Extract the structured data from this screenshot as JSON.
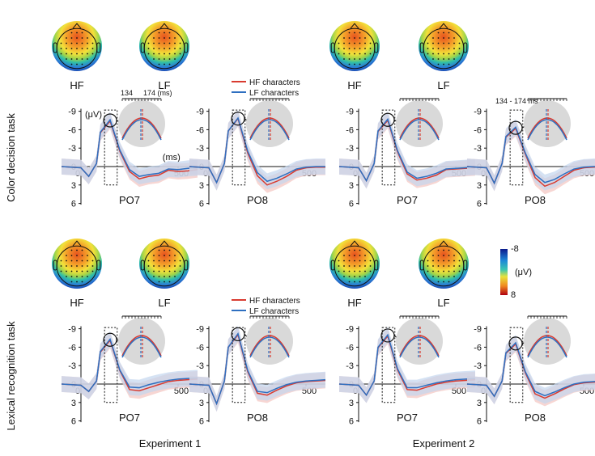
{
  "figure": {
    "row_labels": [
      "Color decision task",
      "Lexical recognition task"
    ],
    "column_labels": [
      "Experiment 1",
      "Experiment 2"
    ],
    "topo_labels": [
      "HF",
      "LF"
    ],
    "unit_label": "(μV)",
    "ms_label": "(ms)",
    "window_label_e1": [
      "134",
      "174 (ms)"
    ],
    "window_label_e2": "134 - 174 ms",
    "colorbar": {
      "top": "-8",
      "bottom": "8",
      "unit": "(μV)"
    },
    "colors": {
      "hf": "#d93b30",
      "lf": "#2e6fc0",
      "hf_band": "#f4c4c0",
      "lf_band": "#c3d6ee",
      "grey": "#d9d9d9"
    }
  },
  "legend": {
    "hf": "HF characters",
    "lf": "LF characters"
  },
  "chart_data": [
    {
      "type": "line",
      "experiment": "Experiment 1",
      "task": "Color decision task",
      "channel": "PO7",
      "ylim": [
        -9,
        6
      ],
      "yticks": [
        "-9",
        "-6",
        "-3",
        "0",
        "3",
        "6"
      ],
      "xticks": [
        "0",
        "500"
      ],
      "peak_uV": -7.5,
      "series": [
        {
          "name": "HF characters",
          "x": [
            -100,
            0,
            40,
            80,
            100,
            150,
            200,
            250,
            300,
            350,
            400,
            450,
            500,
            550,
            600
          ],
          "y": [
            0,
            0.2,
            1.6,
            -0.5,
            -5.5,
            -7.4,
            -2.5,
            0.8,
            2.0,
            1.6,
            1.4,
            0.6,
            0.8,
            0.7,
            0.5
          ]
        },
        {
          "name": "LF characters",
          "x": [
            -100,
            0,
            40,
            80,
            100,
            150,
            200,
            250,
            300,
            350,
            400,
            450,
            500,
            550,
            600
          ],
          "y": [
            0,
            0.2,
            1.6,
            -0.5,
            -5.6,
            -7.6,
            -2.7,
            0.5,
            1.6,
            1.3,
            1.1,
            0.4,
            0.5,
            0.3,
            0.2
          ]
        }
      ]
    },
    {
      "type": "line",
      "experiment": "Experiment 1",
      "task": "Color decision task",
      "channel": "PO8",
      "ylim": [
        -9,
        6
      ],
      "yticks": [
        "-9",
        "-6",
        "-3",
        "0",
        "3",
        "6"
      ],
      "xticks": [
        "0",
        "500"
      ],
      "peak_uV": -7.8,
      "series": [
        {
          "name": "HF characters",
          "x": [
            -100,
            0,
            40,
            80,
            100,
            150,
            200,
            250,
            300,
            350,
            400,
            450,
            500,
            550,
            600
          ],
          "y": [
            0,
            0.2,
            2.6,
            -0.5,
            -5.8,
            -7.8,
            -2.2,
            1.5,
            3.0,
            2.4,
            1.6,
            0.6,
            0.2,
            0.1,
            0.1
          ]
        },
        {
          "name": "LF characters",
          "x": [
            -100,
            0,
            40,
            80,
            100,
            150,
            200,
            250,
            300,
            350,
            400,
            450,
            500,
            550,
            600
          ],
          "y": [
            0,
            0.2,
            2.6,
            -0.5,
            -5.8,
            -7.9,
            -2.5,
            1.0,
            2.4,
            1.9,
            1.2,
            0.4,
            0.1,
            0.0,
            0.0
          ]
        }
      ]
    },
    {
      "type": "line",
      "experiment": "Experiment 2",
      "task": "Color decision task",
      "channel": "PO7",
      "ylim": [
        -9,
        6
      ],
      "yticks": [
        "-9",
        "-6",
        "-3",
        "0",
        "3",
        "6"
      ],
      "xticks": [
        "0",
        "500"
      ],
      "peak_uV": -7.6,
      "series": [
        {
          "name": "HF characters",
          "x": [
            -100,
            0,
            40,
            80,
            100,
            150,
            200,
            250,
            300,
            350,
            400,
            450,
            500,
            550,
            600
          ],
          "y": [
            0,
            0.2,
            2.3,
            -0.5,
            -5.7,
            -7.5,
            -2.4,
            1.2,
            2.2,
            1.9,
            1.4,
            0.5,
            0.4,
            0.3,
            0.2
          ]
        },
        {
          "name": "LF characters",
          "x": [
            -100,
            0,
            40,
            80,
            100,
            150,
            200,
            250,
            300,
            350,
            400,
            450,
            500,
            550,
            600
          ],
          "y": [
            0,
            0.2,
            2.3,
            -0.5,
            -5.8,
            -7.7,
            -2.6,
            0.9,
            1.9,
            1.6,
            1.1,
            0.4,
            0.3,
            0.2,
            0.1
          ]
        }
      ]
    },
    {
      "type": "line",
      "experiment": "Experiment 2",
      "task": "Color decision task",
      "channel": "PO8",
      "ylim": [
        -9,
        6
      ],
      "yticks": [
        "-9",
        "-6",
        "-3",
        "0",
        "3",
        "6"
      ],
      "xticks": [
        "0",
        "500"
      ],
      "peak_uV": -6.3,
      "series": [
        {
          "name": "HF characters",
          "x": [
            -100,
            0,
            40,
            80,
            100,
            150,
            200,
            250,
            300,
            350,
            400,
            450,
            500,
            550,
            600
          ],
          "y": [
            0,
            0.2,
            2.7,
            -0.5,
            -4.8,
            -6.2,
            -2.0,
            1.8,
            3.2,
            2.6,
            1.6,
            0.6,
            0.2,
            0.1,
            0.0
          ]
        },
        {
          "name": "LF characters",
          "x": [
            -100,
            0,
            40,
            80,
            100,
            150,
            200,
            250,
            300,
            350,
            400,
            450,
            500,
            550,
            600
          ],
          "y": [
            0,
            0.2,
            2.7,
            -0.5,
            -4.9,
            -6.4,
            -2.2,
            1.3,
            2.6,
            2.1,
            1.2,
            0.4,
            0.1,
            0.0,
            0.0
          ]
        }
      ]
    },
    {
      "type": "line",
      "experiment": "Experiment 1",
      "task": "Lexical recognition task",
      "channel": "PO7",
      "ylim": [
        -9,
        6
      ],
      "yticks": [
        "-9",
        "-6",
        "-3",
        "0",
        "3",
        "6"
      ],
      "xticks": [
        "0",
        "500"
      ],
      "peak_uV": -7.2,
      "series": [
        {
          "name": "HF characters",
          "x": [
            -100,
            0,
            40,
            80,
            100,
            150,
            200,
            250,
            300,
            350,
            400,
            450,
            500,
            550,
            600
          ],
          "y": [
            0,
            0.2,
            1.2,
            -0.5,
            -5.2,
            -7.1,
            -2.2,
            0.9,
            1.1,
            0.6,
            0.1,
            -0.4,
            -0.6,
            -0.7,
            -0.8
          ]
        },
        {
          "name": "LF characters",
          "x": [
            -100,
            0,
            40,
            80,
            100,
            150,
            200,
            250,
            300,
            350,
            400,
            450,
            500,
            550,
            600
          ],
          "y": [
            0,
            0.2,
            1.2,
            -0.5,
            -5.3,
            -7.3,
            -2.3,
            0.5,
            0.6,
            0.1,
            -0.3,
            -0.6,
            -0.8,
            -0.9,
            -1.0
          ]
        }
      ]
    },
    {
      "type": "line",
      "experiment": "Experiment 1",
      "task": "Lexical recognition task",
      "channel": "PO8",
      "ylim": [
        -9,
        6
      ],
      "yticks": [
        "-9",
        "-6",
        "-3",
        "0",
        "3",
        "6"
      ],
      "xticks": [
        "0",
        "500"
      ],
      "peak_uV": -8.1,
      "series": [
        {
          "name": "HF characters",
          "x": [
            -100,
            0,
            40,
            80,
            100,
            150,
            200,
            250,
            300,
            350,
            400,
            450,
            500,
            550,
            600
          ],
          "y": [
            0,
            0.2,
            3.2,
            -0.5,
            -6.0,
            -8.0,
            -2.0,
            1.5,
            1.8,
            1.0,
            0.3,
            -0.2,
            -0.4,
            -0.5,
            -0.6
          ]
        },
        {
          "name": "LF characters",
          "x": [
            -100,
            0,
            40,
            80,
            100,
            150,
            200,
            250,
            300,
            350,
            400,
            450,
            500,
            550,
            600
          ],
          "y": [
            0,
            0.2,
            3.2,
            -0.5,
            -6.0,
            -8.2,
            -2.2,
            1.2,
            1.4,
            0.7,
            0.1,
            -0.3,
            -0.5,
            -0.6,
            -0.7
          ]
        }
      ]
    },
    {
      "type": "line",
      "experiment": "Experiment 2",
      "task": "Lexical recognition task",
      "channel": "PO7",
      "ylim": [
        -9,
        6
      ],
      "yticks": [
        "-9",
        "-6",
        "-3",
        "0",
        "3",
        "6"
      ],
      "xticks": [
        "0",
        "500"
      ],
      "peak_uV": -7.9,
      "series": [
        {
          "name": "HF characters",
          "x": [
            -100,
            0,
            40,
            80,
            100,
            150,
            200,
            250,
            300,
            350,
            400,
            450,
            500,
            550,
            600
          ],
          "y": [
            0,
            0.2,
            1.8,
            -0.5,
            -5.9,
            -7.8,
            -2.3,
            0.9,
            1.0,
            0.5,
            0.0,
            -0.3,
            -0.5,
            -0.6,
            -0.7
          ]
        },
        {
          "name": "LF characters",
          "x": [
            -100,
            0,
            40,
            80,
            100,
            150,
            200,
            250,
            300,
            350,
            400,
            450,
            500,
            550,
            600
          ],
          "y": [
            0,
            0.2,
            1.8,
            -0.5,
            -6.0,
            -8.0,
            -2.5,
            0.6,
            0.6,
            0.2,
            -0.2,
            -0.5,
            -0.7,
            -0.8,
            -0.9
          ]
        }
      ]
    },
    {
      "type": "line",
      "experiment": "Experiment 2",
      "task": "Lexical recognition task",
      "channel": "PO8",
      "ylim": [
        -9,
        6
      ],
      "yticks": [
        "-9",
        "-6",
        "-3",
        "0",
        "3",
        "6"
      ],
      "xticks": [
        "0",
        "500"
      ],
      "peak_uV": -6.6,
      "series": [
        {
          "name": "HF characters",
          "x": [
            -100,
            0,
            40,
            80,
            100,
            150,
            200,
            250,
            300,
            350,
            400,
            450,
            500,
            550,
            600
          ],
          "y": [
            0,
            0.2,
            2.0,
            -0.5,
            -5.0,
            -6.5,
            -1.8,
            1.6,
            2.3,
            1.6,
            0.8,
            0.1,
            -0.2,
            -0.3,
            -0.4
          ]
        },
        {
          "name": "LF characters",
          "x": [
            -100,
            0,
            40,
            80,
            100,
            150,
            200,
            250,
            300,
            350,
            400,
            450,
            500,
            550,
            600
          ],
          "y": [
            0,
            0.2,
            2.0,
            -0.5,
            -5.1,
            -6.7,
            -2.0,
            1.2,
            1.9,
            1.3,
            0.6,
            0.0,
            -0.3,
            -0.4,
            -0.5
          ]
        }
      ]
    }
  ]
}
